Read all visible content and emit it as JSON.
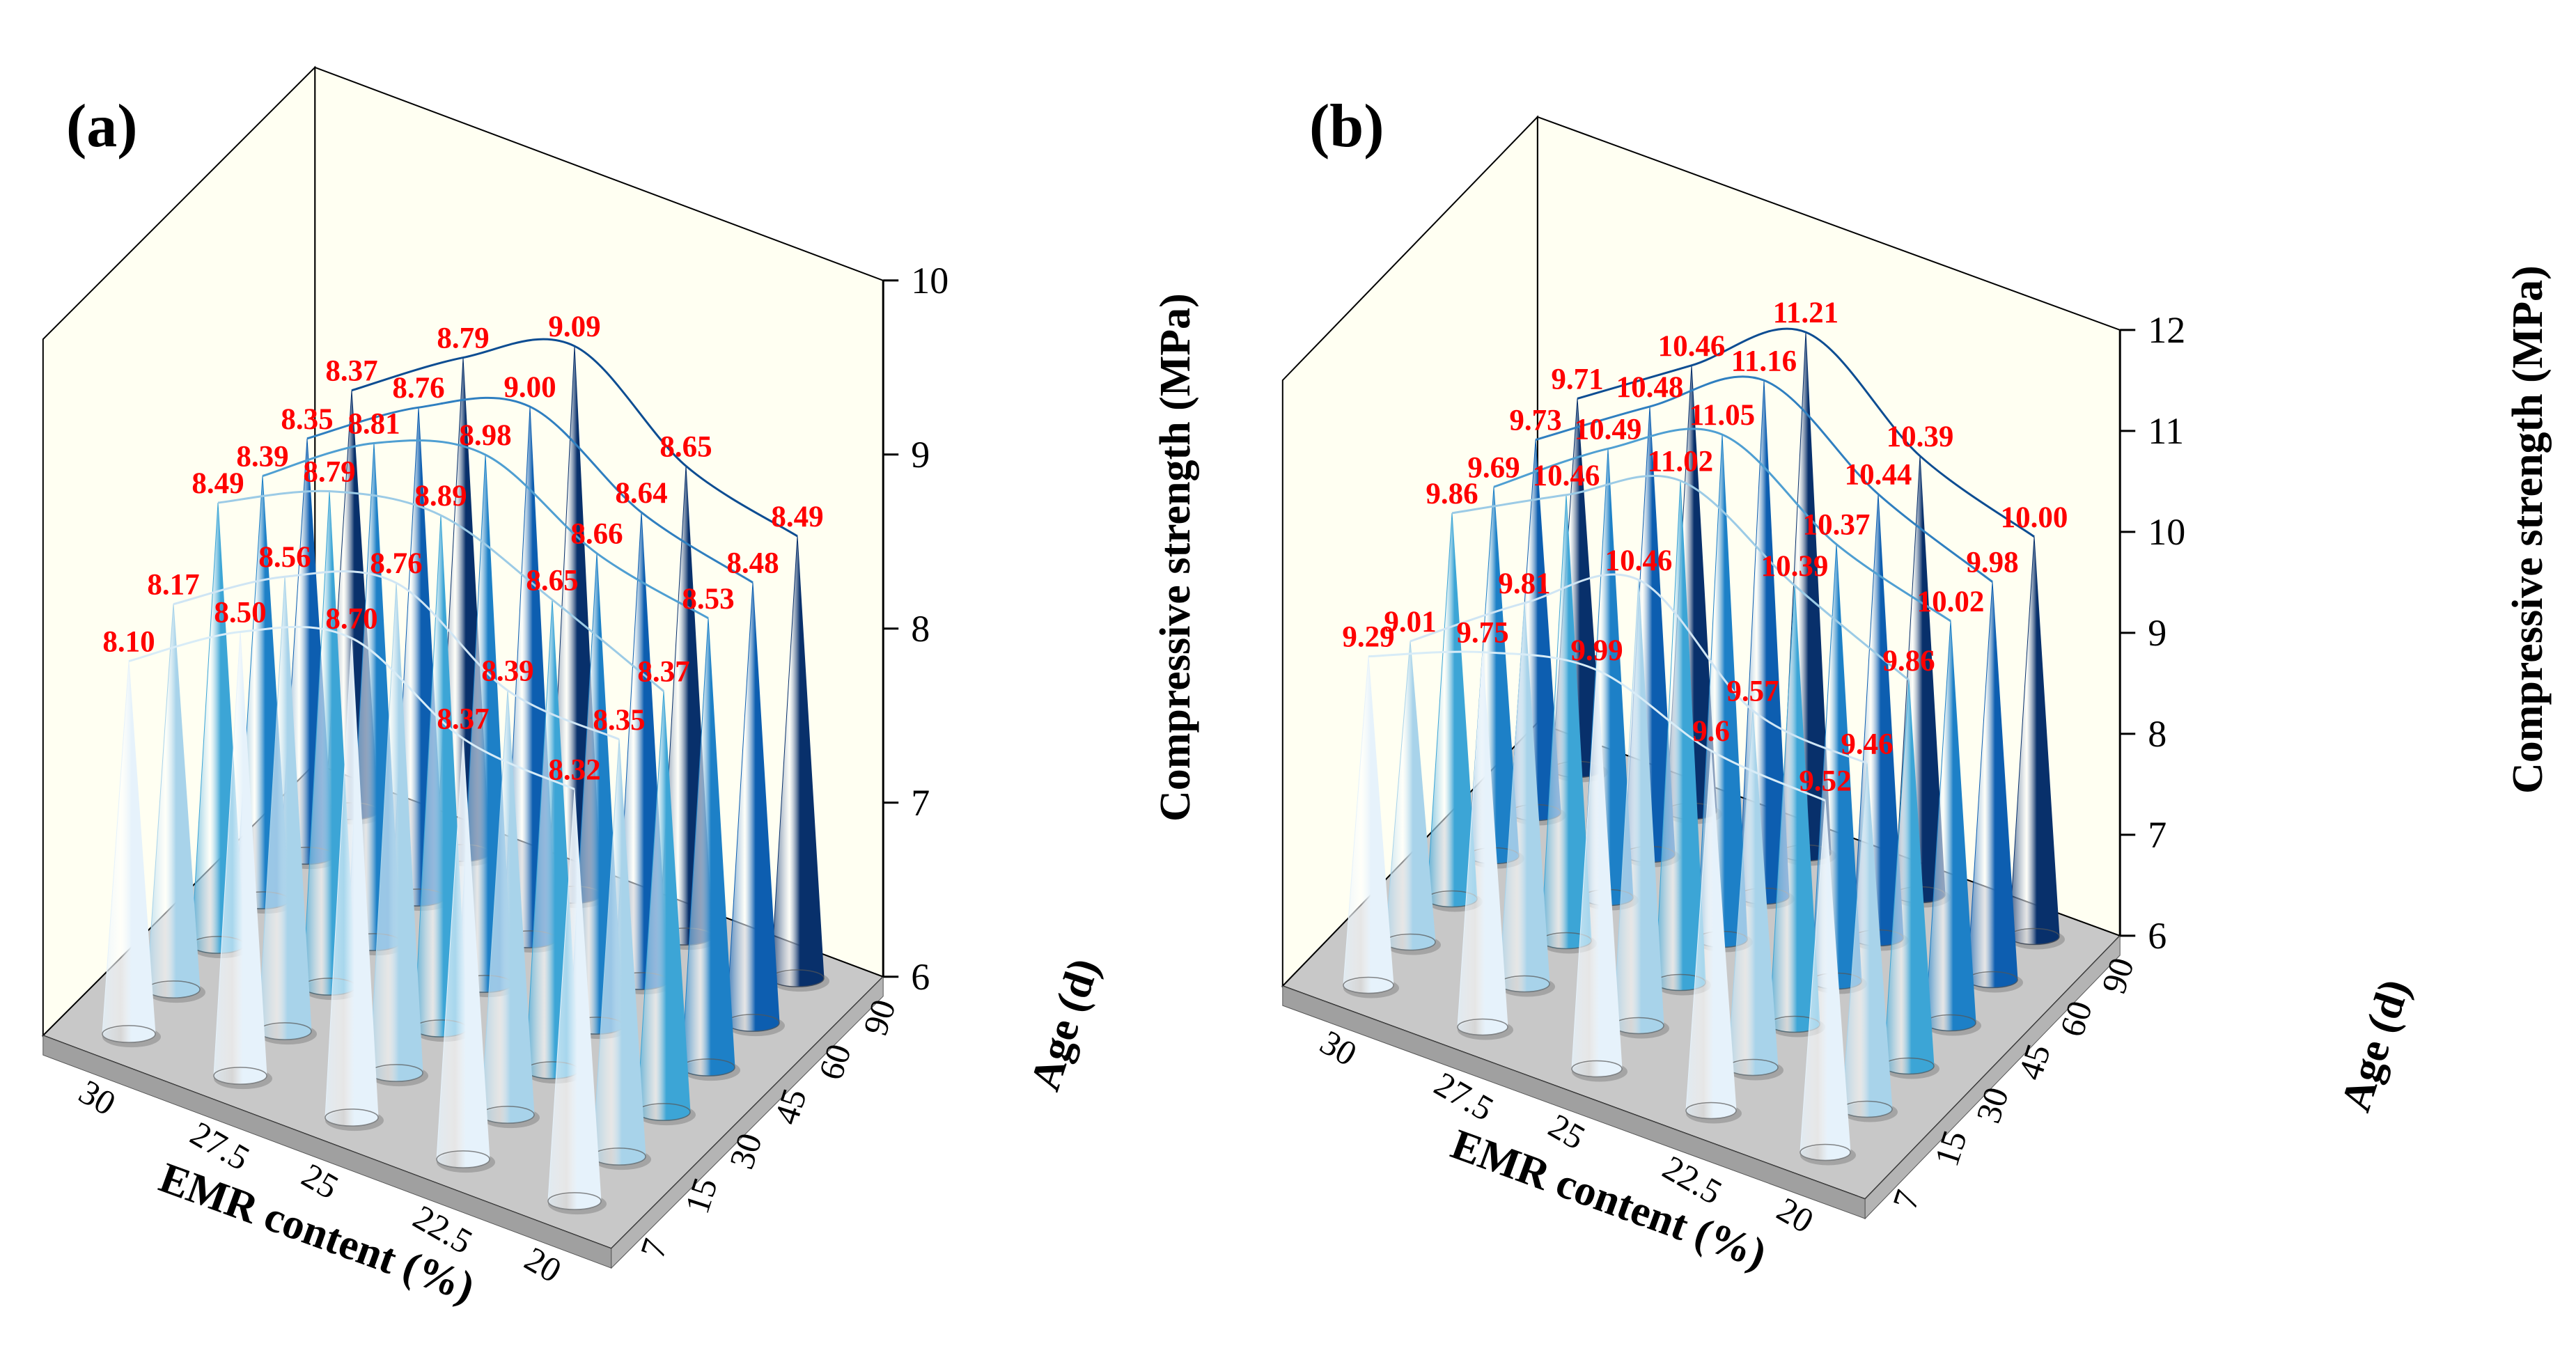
{
  "chart_data": [
    {
      "panel": "(a)",
      "type": "3d-cone",
      "xlabel": "EMR content (%)",
      "ylabel": "Age (d)",
      "zlabel": "Compressive strength (MPa)",
      "x_ticks": [
        "30",
        "27.5",
        "25",
        "22.5",
        "20"
      ],
      "y_ticks": [
        "7",
        "15",
        "30",
        "45",
        "60",
        "90"
      ],
      "z_ticks": [
        "6",
        "7",
        "8",
        "9",
        "10"
      ],
      "zlim": [
        6,
        10
      ],
      "series": [
        {
          "age": "7",
          "values": [
            8.1,
            8.5,
            8.7,
            8.37,
            8.32
          ],
          "labels": [
            "8.10",
            "8.50",
            "8.70",
            "8.37",
            "8.32"
          ]
        },
        {
          "age": "15",
          "values": [
            8.17,
            8.56,
            8.76,
            8.39,
            8.35
          ],
          "labels": [
            "8.17",
            "8.56",
            "8.76",
            "8.39",
            "8.35"
          ]
        },
        {
          "age": "30",
          "values": [
            8.49,
            8.79,
            8.89,
            8.65,
            8.37
          ],
          "labels": [
            "8.49",
            "8.79",
            "8.89",
            "8.65",
            "8.37"
          ]
        },
        {
          "age": "45",
          "values": [
            8.39,
            8.81,
            8.98,
            8.66,
            8.53
          ],
          "labels": [
            "8.39",
            "8.81",
            "8.98",
            "8.66",
            "8.53"
          ]
        },
        {
          "age": "60",
          "values": [
            8.35,
            8.76,
            9.0,
            8.64,
            8.48
          ],
          "labels": [
            "8.35",
            "8.76",
            "9.00",
            "8.64",
            "8.48"
          ]
        },
        {
          "age": "90",
          "values": [
            8.37,
            8.79,
            9.09,
            8.65,
            8.49
          ],
          "labels": [
            "8.37",
            "8.79",
            "9.09",
            "8.65",
            "8.49"
          ]
        }
      ]
    },
    {
      "panel": "(b)",
      "type": "3d-cone",
      "xlabel": "EMR content (%)",
      "ylabel": "Age (d)",
      "zlabel": "Compressive strength (MPa)",
      "x_ticks": [
        "30",
        "27.5",
        "25",
        "22.5",
        "20"
      ],
      "y_ticks": [
        "7",
        "15",
        "30",
        "45",
        "60",
        "90"
      ],
      "z_ticks": [
        "6",
        "7",
        "8",
        "9",
        "10",
        "11",
        "12"
      ],
      "zlim": [
        6,
        12
      ],
      "series": [
        {
          "age": "7",
          "values": [
            9.29,
            9.75,
            9.99,
            9.6,
            9.52
          ],
          "labels": [
            "9.29",
            "9.75",
            "9.99",
            "9.6",
            "9.52"
          ]
        },
        {
          "age": "15",
          "values": [
            9.01,
            9.81,
            10.46,
            9.57,
            9.46
          ],
          "labels": [
            "9.01",
            "9.81",
            "10.46",
            "9.57",
            "9.46"
          ]
        },
        {
          "age": "30",
          "values": [
            9.86,
            10.46,
            11.02,
            10.39,
            9.86
          ],
          "labels": [
            "9.86",
            "10.46",
            "11.02",
            "10.39",
            "9.86"
          ]
        },
        {
          "age": "45",
          "values": [
            9.69,
            10.49,
            11.05,
            10.37,
            10.02
          ],
          "labels": [
            "9.69",
            "10.49",
            "11.05",
            "10.37",
            "10.02"
          ]
        },
        {
          "age": "60",
          "values": [
            9.73,
            10.48,
            11.16,
            10.44,
            9.98
          ],
          "labels": [
            "9.73",
            "10.48",
            "11.16",
            "10.44",
            "9.98"
          ]
        },
        {
          "age": "90",
          "values": [
            9.71,
            10.46,
            11.21,
            10.39,
            10.0
          ],
          "labels": [
            "9.71",
            "10.46",
            "11.21",
            "10.39",
            "10.00"
          ]
        }
      ]
    }
  ],
  "colors": {
    "ages": [
      "#e6f2fb",
      "#a8d3ea",
      "#3ca5d6",
      "#1d80c7",
      "#0d5eb0",
      "#08306b"
    ],
    "back_wall": "#fffff2",
    "floor": "#c8c8c8",
    "label": "#ff0000"
  }
}
